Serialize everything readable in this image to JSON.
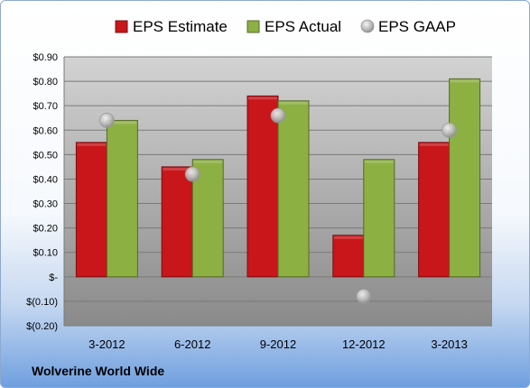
{
  "chart_data": {
    "type": "bar",
    "categories": [
      "3-2012",
      "6-2012",
      "9-2012",
      "12-2012",
      "3-2013"
    ],
    "series": [
      {
        "name": "EPS Estimate",
        "kind": "bar",
        "color": "#c9161b",
        "values": [
          0.55,
          0.45,
          0.74,
          0.17,
          0.55
        ]
      },
      {
        "name": "EPS Actual",
        "kind": "bar",
        "color": "#8db043",
        "values": [
          0.64,
          0.48,
          0.72,
          0.48,
          0.81
        ]
      },
      {
        "name": "EPS GAAP",
        "kind": "marker",
        "color": "#b9b9b9",
        "values": [
          0.64,
          0.42,
          0.66,
          -0.08,
          0.6
        ]
      }
    ],
    "ylim": [
      -0.2,
      0.9
    ],
    "yticks": [
      0.9,
      0.8,
      0.7,
      0.6,
      0.5,
      0.4,
      0.3,
      0.2,
      0.1,
      0,
      -0.1,
      -0.2
    ],
    "ytick_labels": [
      "$0.90",
      "$0.80",
      "$0.70",
      "$0.60",
      "$0.50",
      "$0.40",
      "$0.30",
      "$0.20",
      "$0.10",
      "$-",
      "$(0.10)",
      "$(0.20)"
    ],
    "grid": true,
    "legend_position": "top"
  },
  "footer": {
    "company": "Wolverine World Wide"
  }
}
